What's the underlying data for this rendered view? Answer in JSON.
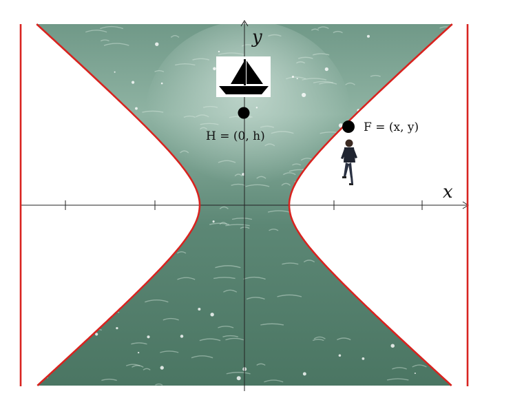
{
  "axes": {
    "x_label": "x",
    "y_label": "y"
  },
  "points": {
    "h_label": "H = (0, h)",
    "f_label": "F = (x, y)"
  },
  "colors": {
    "curve": "#d8231f",
    "water_dark": "#4f7b68",
    "water_light": "#8fb0a1",
    "axis": "#222222",
    "point": "#000000"
  },
  "icons": {
    "boat": "boat-icon",
    "person": "walking-person-icon"
  }
}
